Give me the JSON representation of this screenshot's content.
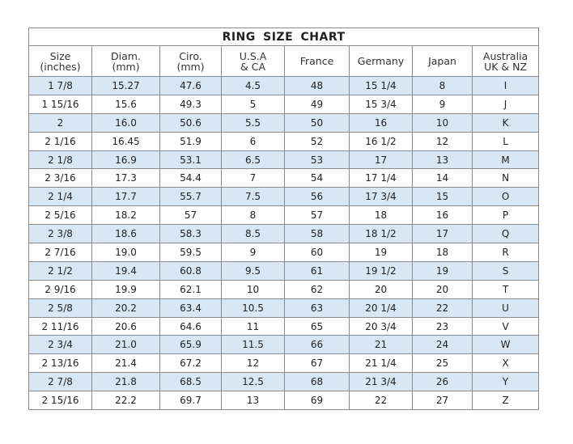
{
  "title": "RING SIZE CHART",
  "headers": [
    [
      "Size",
      "(inches)"
    ],
    [
      "Diam.",
      "(mm)"
    ],
    [
      "Ciro.",
      "(mm)"
    ],
    [
      "U.S.A",
      "& CA"
    ],
    [
      "France",
      ""
    ],
    [
      "Germany",
      ""
    ],
    [
      "Japan",
      ""
    ],
    [
      "Australia",
      "UK & NZ"
    ]
  ],
  "rows": [
    [
      "1 7/8",
      "15.27",
      "47.6",
      "4.5",
      "48",
      "15 1/4",
      "8",
      "I"
    ],
    [
      "1 15/16",
      "15.6",
      "49.3",
      "5",
      "49",
      "15 3/4",
      "9",
      "J"
    ],
    [
      "2",
      "16.0",
      "50.6",
      "5.5",
      "50",
      "16",
      "10",
      "K"
    ],
    [
      "2 1/16",
      "16.45",
      "51.9",
      "6",
      "52",
      "16 1/2",
      "12",
      "L"
    ],
    [
      "2 1/8",
      "16.9",
      "53.1",
      "6.5",
      "53",
      "17",
      "13",
      "M"
    ],
    [
      "2 3/16",
      "17.3",
      "54.4",
      "7",
      "54",
      "17 1/4",
      "14",
      "N"
    ],
    [
      "2 1/4",
      "17.7",
      "55.7",
      "7.5",
      "56",
      "17 3/4",
      "15",
      "O"
    ],
    [
      "2 5/16",
      "18.2",
      "57",
      "8",
      "57",
      "18",
      "16",
      "P"
    ],
    [
      "2 3/8",
      "18.6",
      "58.3",
      "8.5",
      "58",
      "18 1/2",
      "17",
      "Q"
    ],
    [
      "2 7/16",
      "19.0",
      "59.5",
      "9",
      "60",
      "19",
      "18",
      "R"
    ],
    [
      "2 1/2",
      "19.4",
      "60.8",
      "9.5",
      "61",
      "19 1/2",
      "19",
      "S"
    ],
    [
      "2 9/16",
      "19.9",
      "62.1",
      "10",
      "62",
      "20",
      "20",
      "T"
    ],
    [
      "2 5/8",
      "20.2",
      "63.4",
      "10.5",
      "63",
      "20 1/4",
      "22",
      "U"
    ],
    [
      "2 11/16",
      "20.6",
      "64.6",
      "11",
      "65",
      "20 3/4",
      "23",
      "V"
    ],
    [
      "2 3/4",
      "21.0",
      "65.9",
      "11.5",
      "66",
      "21",
      "24",
      "W"
    ],
    [
      "2 13/16",
      "21.4",
      "67.2",
      "12",
      "67",
      "21 1/4",
      "25",
      "X"
    ],
    [
      "2 7/8",
      "21.8",
      "68.5",
      "12.5",
      "68",
      "21 3/4",
      "26",
      "Y"
    ],
    [
      "2 15/16",
      "22.2",
      "69.7",
      "13",
      "69",
      "22",
      "27",
      "Z"
    ]
  ],
  "colors": {
    "stripe": "#d8e7f5",
    "border": "#8a8a8a"
  }
}
